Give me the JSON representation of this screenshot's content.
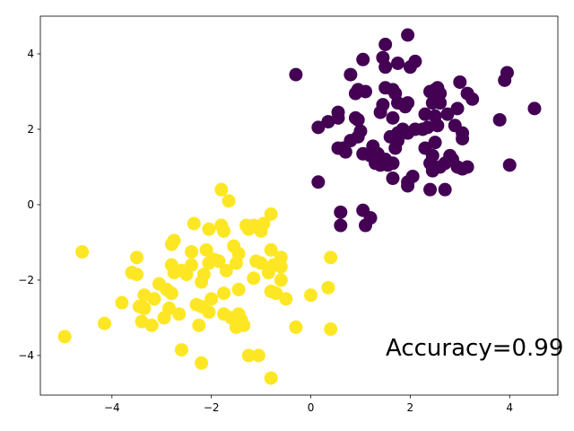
{
  "chart_data": {
    "type": "scatter",
    "xlim": [
      -5.44,
      4.97
    ],
    "ylim": [
      -5.05,
      5.0
    ],
    "xticks": [
      {
        "value": -4,
        "label": "−4"
      },
      {
        "value": -2,
        "label": "−2"
      },
      0,
      2,
      4
    ],
    "yticks": [
      {
        "value": -4,
        "label": "−4"
      },
      {
        "value": -2,
        "label": "−2"
      },
      0,
      2,
      4
    ],
    "annotation": {
      "text": "Accuracy=0.99",
      "color": "#ff0000"
    },
    "series": [
      {
        "color": "#440154",
        "x": [
          -0.3,
          1.05,
          1.5,
          1.95,
          1.45,
          1.5,
          1.75,
          2.1,
          2.0,
          0.8,
          0.95,
          1.1,
          0.9,
          1.4,
          1.45,
          1.5,
          1.65,
          1.7,
          1.75,
          1.9,
          1.95,
          1.65,
          0.55,
          0.55,
          0.35,
          0.15,
          0.9,
          0.95,
          0.8,
          0.95,
          1.0,
          0.65,
          0.55,
          0.7,
          1.05,
          1.2,
          1.25,
          1.35,
          1.5,
          1.3,
          1.4,
          1.55,
          1.65,
          1.7,
          1.6,
          1.75,
          1.85,
          1.95,
          2.1,
          2.25,
          2.35,
          1.75,
          2.3,
          2.4,
          2.5,
          2.55,
          2.6,
          2.45,
          2.6,
          2.75,
          2.5,
          2.55,
          2.3,
          2.5,
          2.45,
          2.4,
          2.45,
          2.6,
          2.7,
          2.8,
          2.85,
          2.95,
          3.05,
          3.15,
          2.05,
          1.95,
          1.65,
          1.95,
          2.4,
          2.7,
          2.9,
          3.05,
          3.05,
          2.95,
          3.0,
          3.15,
          3.25,
          3.8,
          3.95,
          3.9,
          4.5,
          4.0,
          0.15,
          0.6,
          0.6,
          1.05,
          1.2,
          1.1
        ],
        "y": [
          3.45,
          3.85,
          4.25,
          4.5,
          3.9,
          3.65,
          3.75,
          3.8,
          3.65,
          3.45,
          3.05,
          3.0,
          2.95,
          2.45,
          2.65,
          3.1,
          3.05,
          2.95,
          2.7,
          2.6,
          2.7,
          2.3,
          2.45,
          2.3,
          2.2,
          2.05,
          2.3,
          2.25,
          1.7,
          1.8,
          1.95,
          1.5,
          1.5,
          1.4,
          1.35,
          1.3,
          1.55,
          1.35,
          1.2,
          1.1,
          1.05,
          1.05,
          1.1,
          1.5,
          1.8,
          1.9,
          2.0,
          1.9,
          2.0,
          2.0,
          2.05,
          1.7,
          2.4,
          3.0,
          3.05,
          3.1,
          2.95,
          2.7,
          2.7,
          2.4,
          2.35,
          2.1,
          1.5,
          1.65,
          1.3,
          1.1,
          0.9,
          1.0,
          1.1,
          1.3,
          1.2,
          1.0,
          0.95,
          1.0,
          0.75,
          0.6,
          0.7,
          0.5,
          0.4,
          0.4,
          2.1,
          1.9,
          1.75,
          2.55,
          3.25,
          2.95,
          2.8,
          2.25,
          3.5,
          3.3,
          2.55,
          1.05,
          0.6,
          -0.2,
          -0.55,
          -0.15,
          -0.35,
          -0.55
        ]
      },
      {
        "color": "#fde725",
        "x": [
          -4.95,
          -4.6,
          -4.15,
          -3.8,
          -3.6,
          -3.5,
          -3.5,
          -3.45,
          -3.35,
          -3.35,
          -3.4,
          -3.2,
          -3.15,
          -3.05,
          -2.95,
          -2.9,
          -2.8,
          -2.85,
          -2.8,
          -2.75,
          -2.8,
          -2.75,
          -2.65,
          -2.6,
          -2.5,
          -2.4,
          -2.4,
          -2.35,
          -2.3,
          -2.25,
          -2.2,
          -2.2,
          -2.15,
          -2.1,
          -2.05,
          -2.05,
          -2.0,
          -2.05,
          -2.2,
          -2.6,
          -1.95,
          -1.85,
          -1.8,
          -1.75,
          -1.8,
          -1.65,
          -1.7,
          -1.75,
          -1.75,
          -1.6,
          -1.55,
          -1.5,
          -1.45,
          -1.45,
          -1.45,
          -1.4,
          -1.35,
          -1.5,
          -1.3,
          -1.25,
          -1.15,
          -1.1,
          -1.15,
          -1.0,
          -1.0,
          -0.95,
          -0.8,
          -0.8,
          -0.85,
          -0.8,
          -0.7,
          -0.75,
          -0.6,
          -0.6,
          -0.6,
          -0.5,
          -1.25,
          -1.05,
          -0.8,
          -0.3,
          0.0,
          0.35,
          0.4,
          0.4
        ],
        "y": [
          -3.5,
          -1.25,
          -3.15,
          -2.6,
          -1.8,
          -1.4,
          -1.85,
          -2.7,
          -2.75,
          -2.4,
          -3.1,
          -3.2,
          -2.5,
          -2.1,
          -3.0,
          -2.25,
          -2.35,
          -2.75,
          -1.6,
          -1.8,
          -1.05,
          -0.95,
          -2.9,
          -1.75,
          -1.85,
          -1.6,
          -1.25,
          -0.5,
          -2.65,
          -3.2,
          -2.7,
          -2.05,
          -1.85,
          -1.2,
          -0.65,
          -1.55,
          -2.5,
          -2.85,
          -4.2,
          -3.85,
          -1.45,
          -1.5,
          -0.55,
          -0.7,
          0.4,
          0.1,
          -1.75,
          -2.35,
          -2.9,
          -3.0,
          -1.1,
          -1.55,
          -1.3,
          -2.25,
          -2.9,
          -3.05,
          -3.2,
          -3.25,
          -0.55,
          -0.65,
          -0.55,
          -1.5,
          -1.95,
          -1.55,
          -0.7,
          -0.5,
          -0.25,
          -1.2,
          -1.8,
          -2.3,
          -2.35,
          -1.6,
          -1.4,
          -1.65,
          -2.0,
          -2.5,
          -4.0,
          -4.0,
          -4.6,
          -3.25,
          -2.4,
          -2.2,
          -1.4,
          -3.3
        ]
      }
    ]
  }
}
